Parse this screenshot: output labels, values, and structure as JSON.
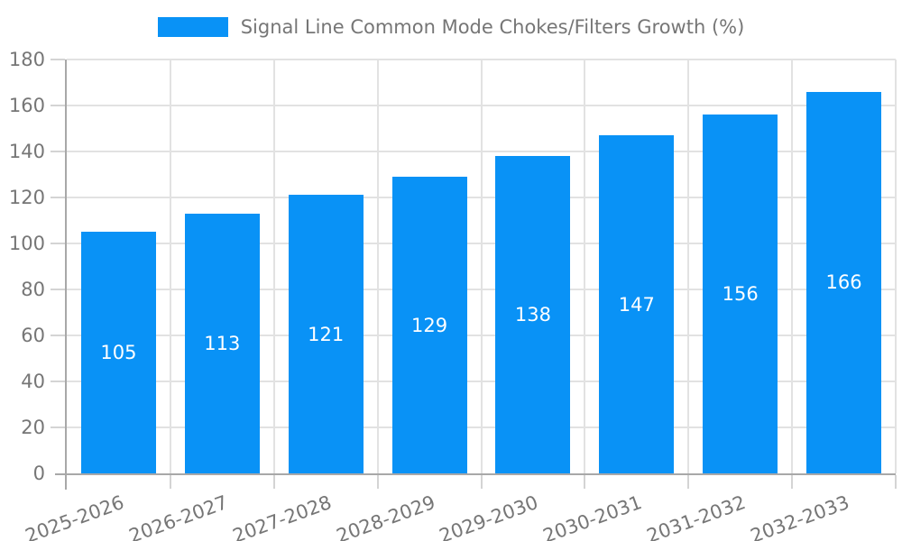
{
  "chart_data": {
    "type": "bar",
    "title": "Signal Line Common Mode Chokes/Filters Growth (%)",
    "legend_position": "top-center",
    "categories": [
      "2025-2026",
      "2026-2027",
      "2027-2028",
      "2028-2029",
      "2029-2030",
      "2030-2031",
      "2031-2032",
      "2032-2033"
    ],
    "values": [
      105,
      113,
      121,
      129,
      138,
      147,
      156,
      166
    ],
    "xlabel": "",
    "ylabel": "",
    "ylim": [
      0,
      180
    ],
    "ytick_step": 20,
    "yticks": [
      0,
      20,
      40,
      60,
      80,
      100,
      120,
      140,
      160,
      180
    ],
    "grid": true,
    "bar_labels_inside": true,
    "x_tick_label_rotation_deg": -20,
    "colors": {
      "bar": "#0992f6",
      "bar_label": "#ffffff",
      "grid": "#e2e2e2",
      "tick": "#d4d4d4",
      "axis": "#a8a8a8",
      "text": "#767676",
      "background": "#ffffff"
    }
  }
}
